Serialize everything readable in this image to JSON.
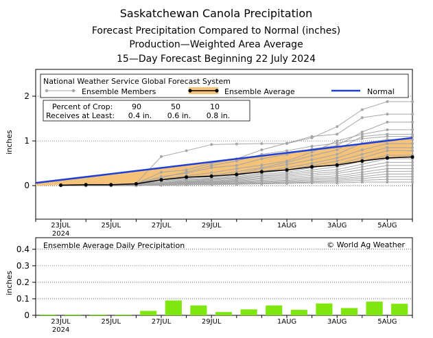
{
  "titles": {
    "line1": "Saskatchewan Canola Precipitation",
    "line2": "Forecast Precipitation Compared to Normal (inches)",
    "line3": "Production—Weighted Area Average",
    "line4": "15—Day Forecast Beginning 22 July 2024"
  },
  "chart_data": [
    {
      "type": "line",
      "ylabel": "inches",
      "ylim": [
        -0.75,
        2.6
      ],
      "yticks": [
        "0",
        "1",
        "2"
      ],
      "xticks": [
        {
          "label": "23JUL",
          "sub": "2024"
        },
        {
          "label": "25JUL",
          "sub": ""
        },
        {
          "label": "27JUL",
          "sub": ""
        },
        {
          "label": "29JUL",
          "sub": ""
        },
        {
          "label": "1AUG",
          "sub": ""
        },
        {
          "label": "3AUG",
          "sub": ""
        },
        {
          "label": "5AUG",
          "sub": ""
        }
      ],
      "source": "National Weather Service Global Forecast System",
      "legend": {
        "members": "Ensemble Members",
        "average": "Ensemble Average",
        "normal": "Normal"
      },
      "crop_table": {
        "row1_label": "Percent of Crop:",
        "row1_values": [
          "90",
          "50",
          "10"
        ],
        "row2_label": "Receives at Least:",
        "row2_values": [
          "0.4 in.",
          "0.6 in.",
          "0.8 in."
        ]
      },
      "series": [
        {
          "name": "Normal",
          "x": [
            22.0,
            37.0
          ],
          "values": [
            0.06,
            1.07
          ]
        },
        {
          "name": "Ensemble Average",
          "x": [
            23,
            24,
            25,
            26,
            27,
            28,
            29,
            30,
            31,
            32,
            33,
            34,
            35,
            36,
            37
          ],
          "values": [
            0.01,
            0.02,
            0.02,
            0.04,
            0.13,
            0.19,
            0.21,
            0.25,
            0.31,
            0.35,
            0.42,
            0.46,
            0.55,
            0.62,
            0.64
          ]
        }
      ],
      "members": [
        [
          0.0,
          0.02,
          0.02,
          0.05,
          0.65,
          0.78,
          0.92,
          0.93,
          0.94,
          0.94,
          1.07,
          1.32,
          1.7,
          1.88,
          1.88
        ],
        [
          0.0,
          0.02,
          0.02,
          0.04,
          0.3,
          0.35,
          0.5,
          0.6,
          0.8,
          0.95,
          1.1,
          1.15,
          1.52,
          1.6,
          1.6
        ],
        [
          0.0,
          0.01,
          0.02,
          0.05,
          0.2,
          0.28,
          0.4,
          0.45,
          0.6,
          0.7,
          0.82,
          0.9,
          1.2,
          1.42,
          1.42
        ],
        [
          0.0,
          0.01,
          0.02,
          0.04,
          0.14,
          0.22,
          0.29,
          0.38,
          0.46,
          0.55,
          0.75,
          1.0,
          1.15,
          1.25,
          1.25
        ],
        [
          0.0,
          0.01,
          0.01,
          0.03,
          0.1,
          0.18,
          0.23,
          0.31,
          0.4,
          0.52,
          0.67,
          0.8,
          1.1,
          1.15,
          1.15
        ],
        [
          0.0,
          0.01,
          0.01,
          0.03,
          0.08,
          0.16,
          0.2,
          0.26,
          0.38,
          0.47,
          0.58,
          0.7,
          0.95,
          1.03,
          1.03
        ],
        [
          0.0,
          0.0,
          0.01,
          0.02,
          0.06,
          0.14,
          0.17,
          0.23,
          0.32,
          0.4,
          0.5,
          0.62,
          0.8,
          0.94,
          0.94
        ],
        [
          0.0,
          0.0,
          0.01,
          0.02,
          0.05,
          0.12,
          0.15,
          0.2,
          0.28,
          0.35,
          0.45,
          0.55,
          0.7,
          0.85,
          0.85
        ],
        [
          0.0,
          0.0,
          0.0,
          0.02,
          0.05,
          0.1,
          0.14,
          0.18,
          0.25,
          0.3,
          0.4,
          0.48,
          0.62,
          0.78,
          0.78
        ],
        [
          0.0,
          0.0,
          0.0,
          0.01,
          0.04,
          0.09,
          0.12,
          0.16,
          0.22,
          0.27,
          0.35,
          0.42,
          0.55,
          0.68,
          0.68
        ],
        [
          0.0,
          0.0,
          0.0,
          0.01,
          0.04,
          0.08,
          0.1,
          0.14,
          0.2,
          0.24,
          0.31,
          0.36,
          0.48,
          0.6,
          0.6
        ],
        [
          0.0,
          0.0,
          0.0,
          0.01,
          0.03,
          0.07,
          0.09,
          0.12,
          0.17,
          0.21,
          0.27,
          0.31,
          0.42,
          0.52,
          0.52
        ],
        [
          0.0,
          0.0,
          0.0,
          0.01,
          0.03,
          0.06,
          0.08,
          0.1,
          0.15,
          0.18,
          0.23,
          0.27,
          0.36,
          0.45,
          0.45
        ],
        [
          0.0,
          0.0,
          0.0,
          0.01,
          0.02,
          0.05,
          0.07,
          0.09,
          0.12,
          0.15,
          0.19,
          0.22,
          0.3,
          0.38,
          0.38
        ],
        [
          0.0,
          0.0,
          0.0,
          0.0,
          0.02,
          0.04,
          0.06,
          0.07,
          0.1,
          0.12,
          0.16,
          0.18,
          0.25,
          0.32,
          0.32
        ],
        [
          0.0,
          0.0,
          0.0,
          0.0,
          0.02,
          0.03,
          0.05,
          0.06,
          0.08,
          0.1,
          0.13,
          0.15,
          0.2,
          0.26,
          0.26
        ],
        [
          0.0,
          0.0,
          0.0,
          0.0,
          0.01,
          0.03,
          0.04,
          0.05,
          0.06,
          0.08,
          0.1,
          0.12,
          0.16,
          0.2,
          0.2
        ],
        [
          0.0,
          0.0,
          0.0,
          0.0,
          0.01,
          0.02,
          0.03,
          0.04,
          0.05,
          0.06,
          0.08,
          0.09,
          0.12,
          0.14,
          0.14
        ],
        [
          0.0,
          0.0,
          0.0,
          0.0,
          0.01,
          0.02,
          0.02,
          0.03,
          0.04,
          0.05,
          0.06,
          0.06,
          0.08,
          0.08,
          0.08
        ],
        [
          0.0,
          0.02,
          0.02,
          0.04,
          0.18,
          0.3,
          0.45,
          0.55,
          0.7,
          0.78,
          0.88,
          0.95,
          1.05,
          1.1,
          1.1
        ]
      ]
    },
    {
      "type": "bar",
      "title": "Ensemble Average Daily Precipitation",
      "ylabel": "inches",
      "ylim": [
        0,
        0.47
      ],
      "yticks": [
        "0",
        "0.1",
        "0.2",
        "0.3",
        "0.4"
      ],
      "credit": "© World Ag Weather",
      "x": [
        22,
        23,
        24,
        25,
        26,
        27,
        28,
        29,
        30,
        31,
        32,
        33,
        34,
        35,
        36,
        37
      ],
      "values": [
        0.005,
        0.005,
        0.005,
        0.005,
        0.027,
        0.09,
        0.06,
        0.02,
        0.036,
        0.06,
        0.033,
        0.072,
        0.044,
        0.083,
        0.07,
        0.022
      ]
    }
  ],
  "colors": {
    "normal": "#1f3fd6",
    "average": "#000000",
    "members": "#a6a6a6",
    "fill": "#f5c27a",
    "bars": "#7fe610"
  }
}
